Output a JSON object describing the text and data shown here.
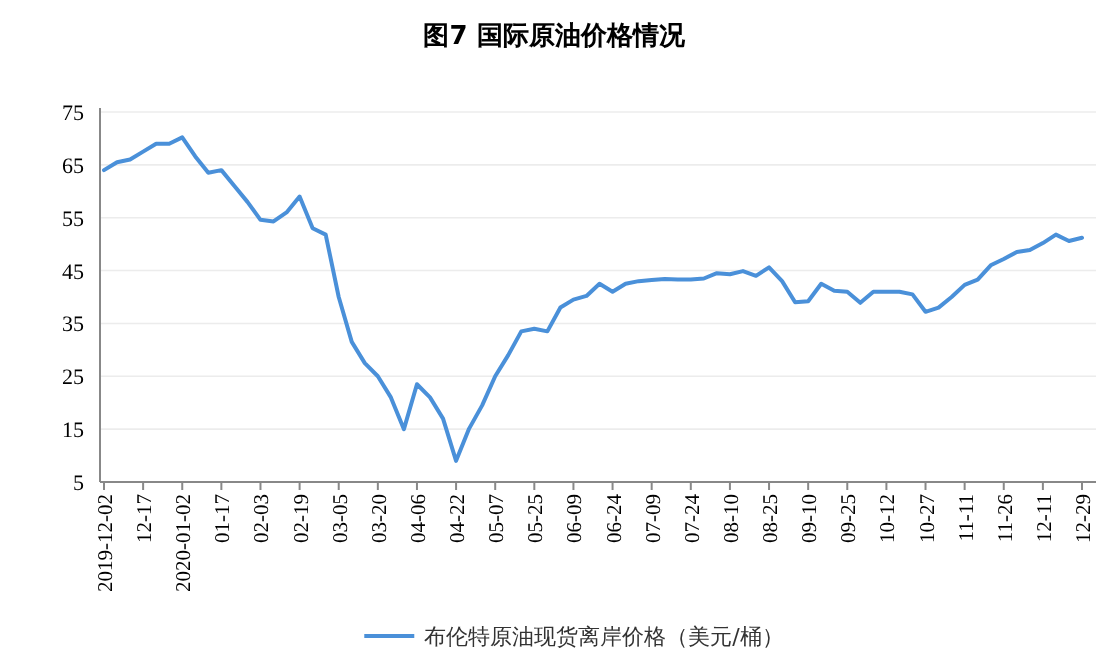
{
  "chart_data": {
    "type": "line",
    "title": "图7  国际原油价格情况",
    "categories": [
      "2019-12-02",
      null,
      null,
      "12-17",
      null,
      null,
      "2020-01-02",
      null,
      null,
      "01-17",
      null,
      null,
      "02-03",
      null,
      null,
      "02-19",
      null,
      null,
      "03-05",
      null,
      null,
      "03-20",
      null,
      null,
      "04-06",
      null,
      null,
      "04-22",
      null,
      null,
      "05-07",
      null,
      null,
      "05-25",
      null,
      null,
      "06-09",
      null,
      null,
      "06-24",
      null,
      null,
      "07-09",
      null,
      null,
      "07-24",
      null,
      null,
      "08-10",
      null,
      null,
      "08-25",
      null,
      null,
      "09-10",
      null,
      null,
      "09-25",
      null,
      null,
      "10-12",
      null,
      null,
      "10-27",
      null,
      null,
      "11-11",
      null,
      null,
      "11-26",
      null,
      null,
      "12-11",
      null,
      null,
      "12-29"
    ],
    "series": [
      {
        "name": "布伦特原油现货离岸价格（美元/桶）",
        "color": "#4a90d9",
        "values": [
          64,
          65.5,
          66,
          67.5,
          69,
          69,
          70.2,
          66.6,
          63.5,
          64,
          61,
          58,
          54.6,
          54.3,
          56,
          59,
          53,
          51.8,
          40,
          31.5,
          27.5,
          25,
          21,
          15,
          23.5,
          21,
          17,
          9,
          15.1,
          19.5,
          25,
          29,
          33.5,
          34,
          33.5,
          38,
          39.5,
          40.2,
          42.5,
          41,
          42.5,
          43,
          43.2,
          43.4,
          43.3,
          43.3,
          43.5,
          44.5,
          44.3,
          44.9,
          44,
          45.6,
          43,
          39,
          39.2,
          42.5,
          41.2,
          41,
          38.9,
          41,
          41,
          41,
          40.5,
          37.2,
          38,
          40,
          42.3,
          43.3,
          46,
          47.2,
          48.5,
          48.9,
          50.2,
          51.8,
          50.6,
          51.2
        ]
      }
    ],
    "ylim": [
      5,
      75
    ],
    "yticks": [
      5,
      15,
      25,
      35,
      45,
      55,
      65,
      75
    ],
    "grid": "y",
    "legend": "bottom"
  }
}
